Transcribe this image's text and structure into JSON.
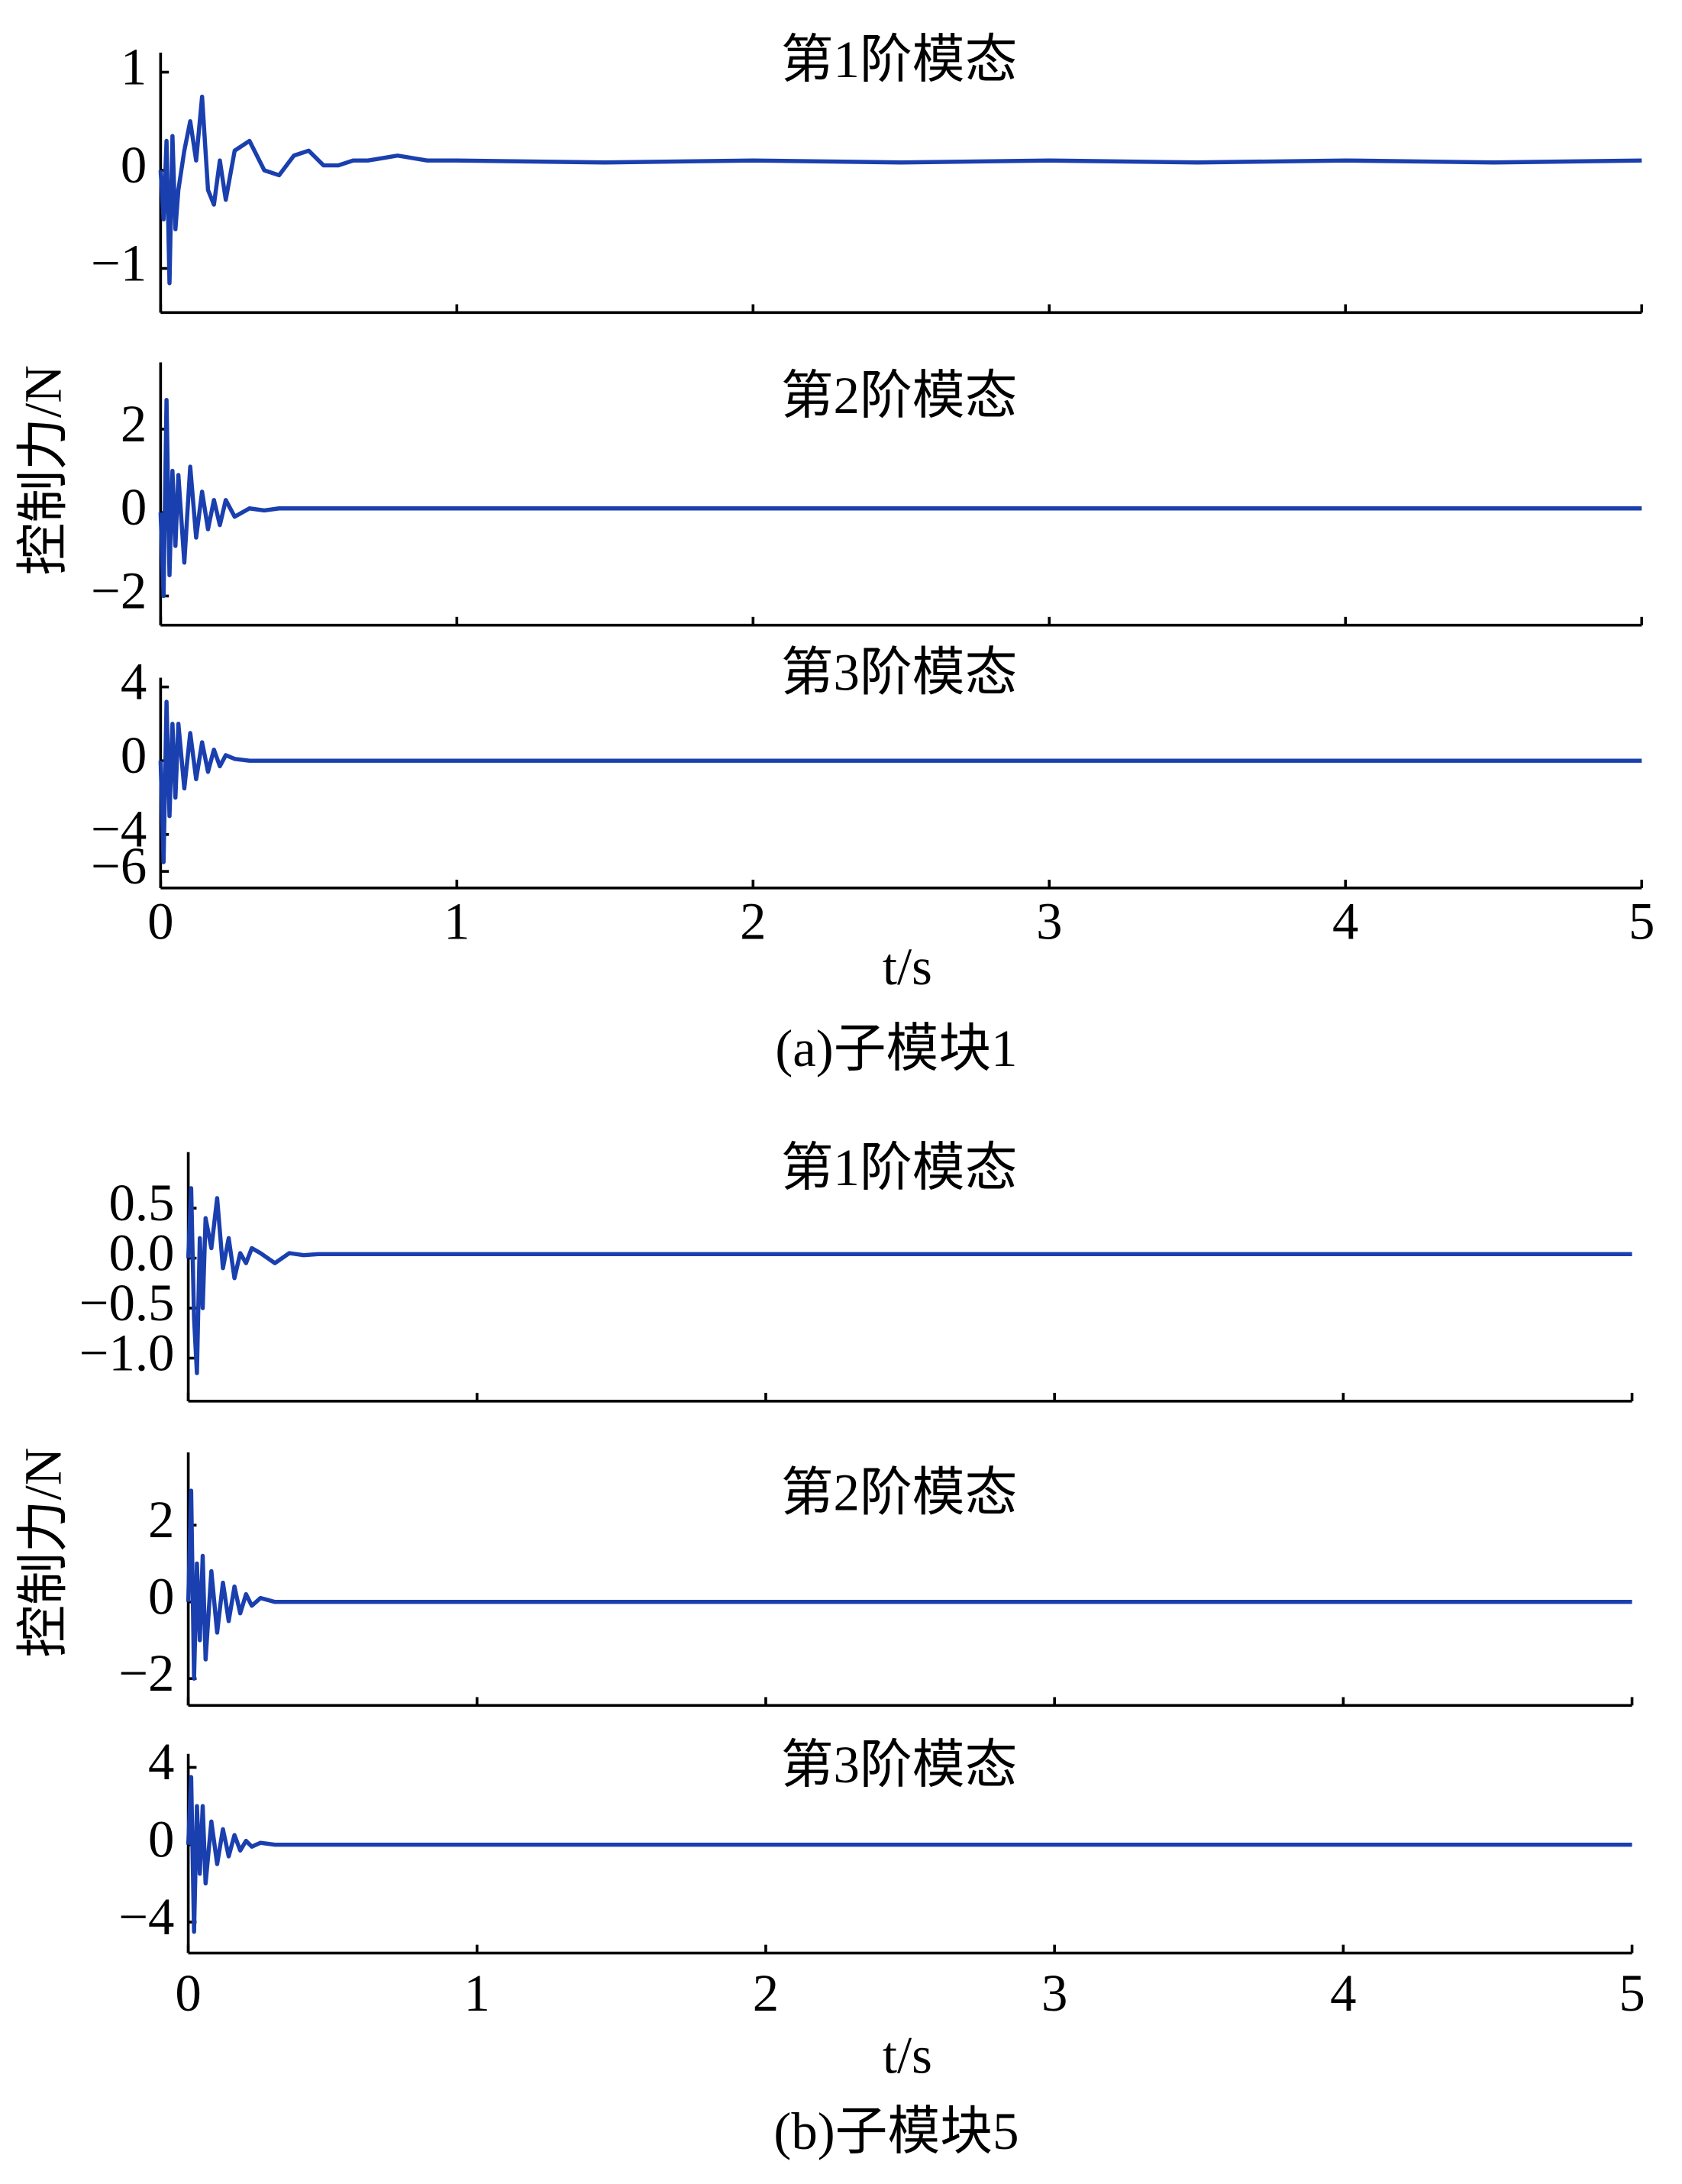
{
  "chart_data": [
    {
      "type": "line",
      "caption": "(a)子模块1",
      "y_label": "控制力/N",
      "x_label": "t/s",
      "color": "#1a3fae",
      "xlim": [
        0,
        5
      ],
      "xticks": [
        0,
        1,
        2,
        3,
        4,
        5
      ],
      "x": [
        0,
        0.01,
        0.02,
        0.03,
        0.04,
        0.05,
        0.06,
        0.08,
        0.1,
        0.12,
        0.14,
        0.16,
        0.18,
        0.2,
        0.22,
        0.25,
        0.3,
        0.35,
        0.4,
        0.45,
        0.5,
        0.55,
        0.6,
        0.65,
        0.7,
        0.8,
        0.9,
        1,
        1.5,
        2,
        2.5,
        3,
        3.5,
        4,
        4.5,
        5
      ],
      "panels": [
        {
          "title": "第1阶模态",
          "ylim": [
            -1.45,
            1.2
          ],
          "yticks": [
            1,
            0,
            {
              "value": -1,
              "label": "−1"
            }
          ],
          "values": [
            0,
            -0.5,
            0.3,
            -1.15,
            0.35,
            -0.6,
            -0.2,
            0.2,
            0.5,
            0.1,
            0.75,
            -0.2,
            -0.35,
            0.1,
            -0.3,
            0.2,
            0.3,
            0.0,
            -0.05,
            0.15,
            0.2,
            0.05,
            0.05,
            0.1,
            0.1,
            0.15,
            0.1,
            0.1,
            0.08,
            0.1,
            0.08,
            0.1,
            0.08,
            0.1,
            0.08,
            0.1
          ]
        },
        {
          "title": "第2阶模态",
          "ylim": [
            -2.7,
            3.6
          ],
          "yticks": [
            2,
            0,
            {
              "value": -2,
              "label": "−2"
            }
          ],
          "values": [
            0,
            -2,
            2.7,
            -1.5,
            1,
            -0.8,
            0.9,
            -1.2,
            1.1,
            -0.6,
            0.5,
            -0.4,
            0.3,
            -0.3,
            0.3,
            -0.1,
            0.1,
            0.05,
            0.1,
            0.1,
            0.1,
            0.1,
            0.1,
            0.1,
            0.1,
            0.1,
            0.1,
            0.1,
            0.1,
            0.1,
            0.1,
            0.1,
            0.1,
            0.1,
            0.1,
            0.1
          ]
        },
        {
          "title": "第3阶模态",
          "ylim": [
            -6.9,
            4.5
          ],
          "yticks": [
            4,
            0,
            {
              "value": -4,
              "label": "−4"
            },
            {
              "value": -6,
              "label": "−6"
            }
          ],
          "values": [
            0,
            -5.5,
            3.2,
            -3,
            2,
            -2,
            2,
            -1.5,
            1.5,
            -1,
            1,
            -0.6,
            0.6,
            -0.3,
            0.3,
            0.1,
            0,
            0,
            0,
            0,
            0,
            0,
            0,
            0,
            0,
            0,
            0,
            0,
            0,
            0,
            0,
            0,
            0,
            0,
            0,
            0
          ]
        }
      ]
    },
    {
      "type": "line",
      "caption": "(b)子模块5",
      "y_label": "控制力/N",
      "x_label": "t/s",
      "color": "#1a3fae",
      "xlim": [
        0,
        5
      ],
      "xticks": [
        0,
        1,
        2,
        3,
        4,
        5
      ],
      "x": [
        0,
        0.01,
        0.02,
        0.03,
        0.04,
        0.05,
        0.06,
        0.08,
        0.1,
        0.12,
        0.14,
        0.16,
        0.18,
        0.2,
        0.22,
        0.25,
        0.3,
        0.35,
        0.4,
        0.45,
        0.5,
        0.55,
        0.6,
        0.65,
        0.7,
        0.8,
        0.9,
        1,
        1.5,
        2,
        2.5,
        3,
        3.5,
        4,
        4.5,
        5
      ],
      "panels": [
        {
          "title": "第1阶模态",
          "ylim": [
            -1.43,
            1.06
          ],
          "yticks": [
            {
              "value": 0.5,
              "label": "0.5"
            },
            {
              "value": 0,
              "label": "0.0"
            },
            {
              "value": -0.5,
              "label": "−0.5"
            },
            {
              "value": -1,
              "label": "−1.0"
            }
          ],
          "values": [
            0,
            0.7,
            -0.6,
            -1.15,
            0.2,
            -0.5,
            0.4,
            0.1,
            0.6,
            -0.1,
            0.2,
            -0.2,
            0.05,
            -0.05,
            0.1,
            0.05,
            -0.05,
            0.05,
            0.03,
            0.04,
            0.04,
            0.04,
            0.04,
            0.04,
            0.04,
            0.04,
            0.04,
            0.04,
            0.04,
            0.04,
            0.04,
            0.04,
            0.04,
            0.04,
            0.04,
            0.04
          ]
        },
        {
          "title": "第2阶模态",
          "ylim": [
            -2.7,
            3.9
          ],
          "yticks": [
            2,
            0,
            {
              "value": -2,
              "label": "−2"
            }
          ],
          "values": [
            0,
            2.9,
            -2,
            1,
            -1,
            1.2,
            -1.5,
            0.8,
            -0.8,
            0.5,
            -0.5,
            0.4,
            -0.3,
            0.2,
            -0.1,
            0.1,
            0,
            0,
            0,
            0,
            0,
            0,
            0,
            0,
            0,
            0,
            0,
            0,
            0,
            0,
            0,
            0,
            0,
            0,
            0,
            0
          ]
        },
        {
          "title": "第3阶模态",
          "ylim": [
            -5.6,
            4.7
          ],
          "yticks": [
            4,
            0,
            {
              "value": -4,
              "label": "−4"
            }
          ],
          "values": [
            0,
            3.5,
            -4.5,
            2,
            -1.5,
            2,
            -2,
            1.2,
            -1,
            0.8,
            -0.6,
            0.5,
            -0.3,
            0.2,
            -0.1,
            0.1,
            0,
            0,
            0,
            0,
            0,
            0,
            0,
            0,
            0,
            0,
            0,
            0,
            0,
            0,
            0,
            0,
            0,
            0,
            0,
            0
          ]
        }
      ]
    }
  ]
}
